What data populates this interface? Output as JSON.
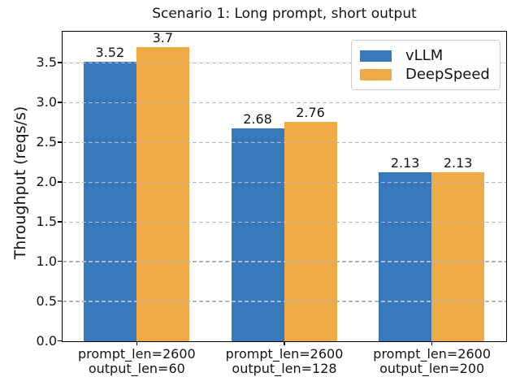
{
  "chart_data": {
    "type": "bar",
    "title": "Scenario 1: Long prompt, short output",
    "xlabel": "",
    "ylabel": "Throughput (reqs/s)",
    "categories": [
      [
        "prompt_len=2600",
        "output_len=60"
      ],
      [
        "prompt_len=2600",
        "output_len=128"
      ],
      [
        "prompt_len=2600",
        "output_len=200"
      ]
    ],
    "series": [
      {
        "name": "vLLM",
        "color": "#3878bc",
        "values": [
          3.52,
          2.68,
          2.13
        ]
      },
      {
        "name": "DeepSpeed",
        "color": "#edaa45",
        "values": [
          3.7,
          2.76,
          2.13
        ]
      }
    ],
    "value_labels": [
      [
        "3.52",
        "2.68",
        "2.13"
      ],
      [
        "3.7",
        "2.76",
        "2.13"
      ]
    ],
    "yticks": [
      "0.0",
      "0.5",
      "1.0",
      "1.5",
      "2.0",
      "2.5",
      "3.0",
      "3.5"
    ],
    "ylim": [
      0,
      3.885
    ],
    "grid": {
      "axis": "y",
      "style": "dashed",
      "color": "#b6b6b6",
      "above_bars": true
    },
    "legend": {
      "position": "upper right"
    },
    "colors": {
      "spine": "#000000",
      "text": "#141414",
      "background": "#ffffff"
    }
  }
}
